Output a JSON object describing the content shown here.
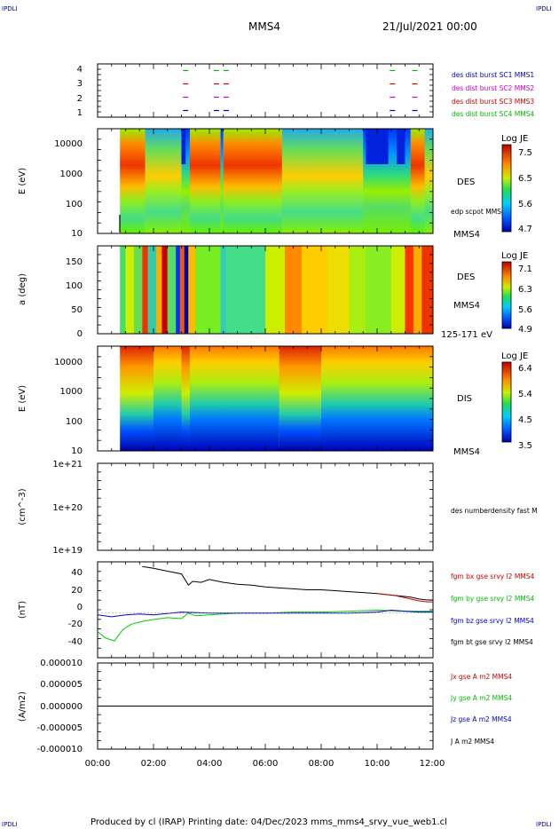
{
  "corner_label": "IPDLI",
  "header": {
    "spacecraft": "MMS4",
    "datetime": "21/Jul/2021 00:00"
  },
  "footer": "Produced by cl (IRAP)   Printing date: 04/Dec/2023   mms_mms4_srvy_vue_web1.cl",
  "time_axis": {
    "range_hours": [
      0,
      12
    ],
    "tick_labels": [
      "00:00",
      "02:00",
      "04:00",
      "06:00",
      "08:00",
      "10:00",
      "12:00"
    ]
  },
  "colors": {
    "des1": "#0000cc",
    "des2": "#cc00cc",
    "des3": "#cc0000",
    "des4": "#00bb00",
    "bx": "#cc0000",
    "by": "#00cc00",
    "bz": "#0000cc",
    "bt": "#000000"
  },
  "chart_data": [
    {
      "type": "scatter",
      "panel": "burst",
      "ylim": [
        0.5,
        4.5
      ],
      "yticks": [
        "4",
        "3",
        "2",
        "1"
      ],
      "legend": [
        "des dist burst SC1 MMS1",
        "des dist burst SC2 MMS2",
        "des dist burst SC3 MMS3",
        "des dist burst SC4 MMS4"
      ],
      "series": [
        {
          "name": "des dist burst SC4 MMS4",
          "level": 4,
          "x": [
            3.15,
            4.25,
            4.6,
            10.55,
            11.35
          ]
        },
        {
          "name": "des dist burst SC3 MMS3",
          "level": 3,
          "x": [
            3.15,
            4.25,
            4.6,
            10.55,
            11.35
          ]
        },
        {
          "name": "des dist burst SC2 MMS2",
          "level": 2,
          "x": [
            3.15,
            4.25,
            4.6,
            10.55,
            11.35
          ]
        },
        {
          "name": "des dist burst SC1 MMS1",
          "level": 1,
          "x": [
            3.15,
            4.25,
            4.6,
            10.55,
            11.35
          ]
        }
      ]
    },
    {
      "type": "heatmap",
      "panel": "des_energy",
      "ylabel": "E (eV)",
      "ylog": true,
      "yticks": [
        "10000",
        "1000",
        "100",
        "10"
      ],
      "label": "DES",
      "sublabel": "edp scpot MMS4",
      "bottom_label": "MMS4",
      "colorbar": {
        "title": "Log JE",
        "ticks": [
          "7.5",
          "6.5",
          "5.6",
          "4.7"
        ]
      },
      "data_start_hour": 0.8
    },
    {
      "type": "heatmap",
      "panel": "des_pitch",
      "ylabel": "a (deg)",
      "yticks": [
        "150",
        "100",
        "50",
        "0"
      ],
      "label": "DES",
      "sublabel": "MMS4",
      "bottom_label": "125-171 eV",
      "colorbar": {
        "title": "Log JE",
        "ticks": [
          "7.1",
          "6.3",
          "5.6",
          "4.9"
        ]
      },
      "data_start_hour": 0.8
    },
    {
      "type": "heatmap",
      "panel": "dis_energy",
      "ylabel": "E (eV)",
      "ylog": true,
      "yticks": [
        "10000",
        "1000",
        "100",
        "10"
      ],
      "label": "DIS",
      "bottom_label": "MMS4",
      "colorbar": {
        "title": "Log JE",
        "ticks": [
          "6.4",
          "5.4",
          "4.5",
          "3.5"
        ]
      },
      "data_start_hour": 0.8
    },
    {
      "type": "line",
      "panel": "density",
      "ylabel": "(cm^-3)",
      "ylog": true,
      "yticks": [
        "1e+21",
        "1e+20",
        "1e+19"
      ],
      "legend": [
        "des numberdensity fast M"
      ],
      "series": []
    },
    {
      "type": "line",
      "panel": "fgm",
      "ylabel": "(nT)",
      "ylim": [
        -48,
        55
      ],
      "yticks": [
        "40",
        "20",
        "0",
        "-20",
        "-40"
      ],
      "legend": [
        "fgm bx gse srvy l2 MMS4",
        "fgm by gse srvy l2 MMS4",
        "fgm bz gse srvy l2 MMS4",
        "fgm bt gse srvy l2 MMS4"
      ],
      "series": [
        {
          "name": "fgm bt gse srvy l2 MMS4",
          "x": [
            1.6,
            2.0,
            2.5,
            3.0,
            3.25,
            3.4,
            3.7,
            4.0,
            4.5,
            5.0,
            5.5,
            6.0,
            6.5,
            7.0,
            7.5,
            8.0,
            8.5,
            9.0,
            9.5,
            10.0,
            10.3,
            10.6,
            10.9,
            11.2,
            11.5,
            11.8,
            12.0
          ],
          "y": [
            50,
            48,
            45,
            42,
            30,
            34,
            33,
            36,
            33,
            31,
            30,
            28,
            27,
            26,
            25,
            25,
            24,
            23,
            22,
            21,
            20,
            19,
            18,
            17,
            15,
            14,
            14
          ]
        },
        {
          "name": "fgm bx gse srvy l2 MMS4",
          "x": [
            10.0,
            10.3,
            10.6,
            10.9,
            11.2,
            11.5,
            11.8,
            12.0
          ],
          "y": [
            21,
            20,
            19,
            17,
            15,
            13,
            12,
            12
          ]
        },
        {
          "name": "fgm by gse srvy l2 MMS4",
          "x": [
            0.0,
            0.3,
            0.6,
            0.9,
            1.2,
            1.6,
            2.0,
            2.5,
            3.0,
            3.25,
            3.5,
            4.0,
            5.0,
            6.0,
            7.0,
            8.0,
            9.0,
            10.0,
            11.0,
            12.0
          ],
          "y": [
            -20,
            -27,
            -30,
            -18,
            -12,
            -9,
            -7,
            -5,
            -6,
            0,
            -3,
            -2,
            0,
            0,
            1,
            1,
            2,
            3,
            2,
            2
          ]
        },
        {
          "name": "fgm bz gse srvy l2 MMS4",
          "x": [
            0.0,
            0.5,
            1.0,
            1.5,
            2.0,
            3.0,
            4.0,
            5.0,
            6.0,
            7.0,
            8.0,
            9.0,
            10.0,
            10.5,
            11.0,
            11.5,
            12.0
          ],
          "y": [
            -2,
            -4,
            -2,
            -1,
            -2,
            1,
            0,
            0,
            0,
            0,
            0,
            0,
            1,
            3,
            2,
            1,
            1
          ]
        }
      ]
    },
    {
      "type": "line",
      "panel": "current",
      "ylabel": "(A/m2)",
      "ylim": [
        -1e-05,
        1e-05
      ],
      "yticks": [
        "0.000010",
        "0.000005",
        "0.000000",
        "-0.000005",
        "-0.000010"
      ],
      "legend": [
        "Jx gse A m2 MMS4",
        "Jy gse A m2 MMS4",
        "Jz gse A m2 MMS4",
        "J A m2 MMS4"
      ],
      "series": [
        {
          "name": "J A m2 MMS4",
          "x": [
            0.0,
            12.0
          ],
          "y": [
            0.0,
            0.0
          ]
        }
      ]
    }
  ]
}
